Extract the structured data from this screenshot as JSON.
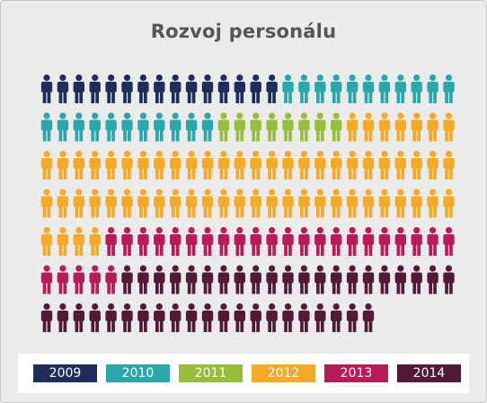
{
  "title": "Rozvoj personálu",
  "colors": {
    "2009": "#1f2d5c",
    "2010": "#2aa6ad",
    "2011": "#97be3a",
    "2012": "#f4a927",
    "2013": "#b81b58",
    "2014": "#531a37"
  },
  "chart_data": {
    "type": "pictogram",
    "icon": "person-icon",
    "icons_per_row": 26,
    "categories": [
      "2009",
      "2010",
      "2011",
      "2012",
      "2013",
      "2014"
    ],
    "values": [
      15,
      22,
      8,
      63,
      27,
      42
    ],
    "total": 177
  },
  "legend": [
    {
      "label": "2009"
    },
    {
      "label": "2010"
    },
    {
      "label": "2011"
    },
    {
      "label": "2012"
    },
    {
      "label": "2013"
    },
    {
      "label": "2014"
    }
  ]
}
